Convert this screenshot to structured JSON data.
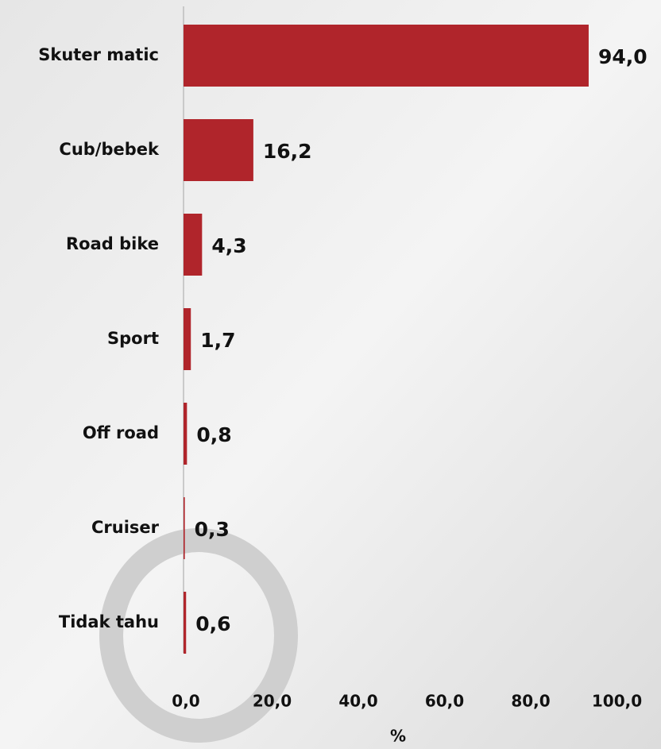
{
  "chart_data": {
    "type": "bar",
    "orientation": "horizontal",
    "categories": [
      "Skuter matic",
      "Cub/bebek",
      "Road bike",
      "Sport",
      "Off road",
      "Cruiser",
      "Tidak tahu"
    ],
    "values": [
      94.0,
      16.2,
      4.3,
      1.7,
      0.8,
      0.3,
      0.6
    ],
    "value_labels": [
      "94,0",
      "16,2",
      "4,3",
      "1,7",
      "0,8",
      "0,3",
      "0,6"
    ],
    "color": "#b0252b",
    "xlabel": "%",
    "xlim": [
      0,
      100
    ],
    "xticks": [
      {
        "value": 0,
        "label": "0,0"
      },
      {
        "value": 20,
        "label": "20,0"
      },
      {
        "value": 40,
        "label": "40,0"
      },
      {
        "value": 60,
        "label": "60,0"
      },
      {
        "value": 80,
        "label": "80,0"
      },
      {
        "value": 100,
        "label": "100,0"
      }
    ]
  }
}
